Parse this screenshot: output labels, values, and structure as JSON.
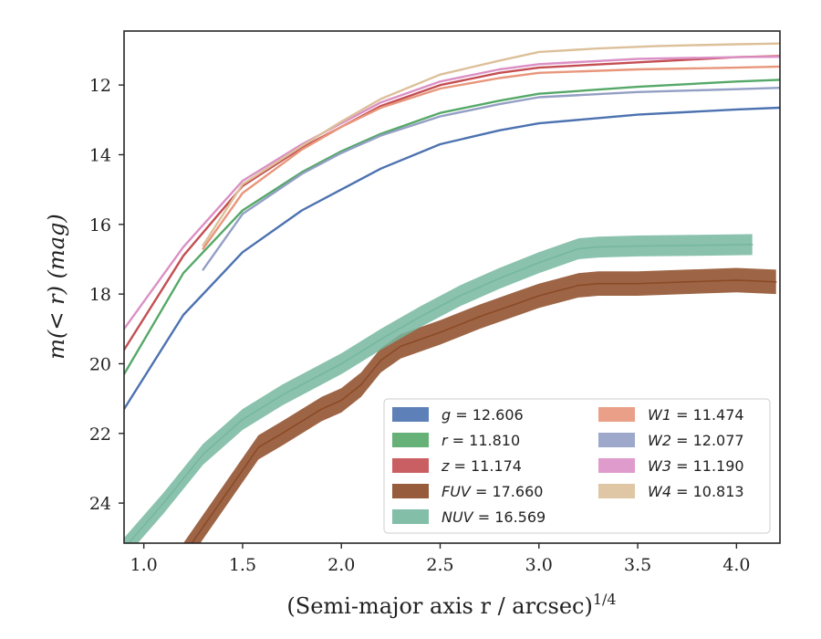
{
  "chart_data": {
    "type": "line",
    "title": "",
    "xlabel": "(Semi-major axis r / arcsec)",
    "xlabel_sup": "1/4",
    "ylabel": "m(< r) (mag)",
    "xlim": [
      0.9,
      4.22
    ],
    "ylim": [
      25.15,
      10.45
    ],
    "y_inverted": true,
    "grid": false,
    "legend_position": "lower-right",
    "xticks": [
      "1.0",
      "1.5",
      "2.0",
      "2.5",
      "3.0",
      "3.5",
      "4.0"
    ],
    "yticks": [
      "12",
      "14",
      "16",
      "18",
      "20",
      "22",
      "24"
    ],
    "legend": [
      {
        "var": "g",
        "value": "12.606"
      },
      {
        "var": "r",
        "value": "11.810"
      },
      {
        "var": "z",
        "value": "11.174"
      },
      {
        "var": "FUV",
        "value": "17.660"
      },
      {
        "var": "NUV",
        "value": "16.569"
      },
      {
        "var": "W1",
        "value": "11.474"
      },
      {
        "var": "W2",
        "value": "12.077"
      },
      {
        "var": "W3",
        "value": "11.190"
      },
      {
        "var": "W4",
        "value": "10.813"
      }
    ],
    "series": [
      {
        "name": "g",
        "color": "#4c72b0",
        "x": [
          0.9,
          1.2,
          1.5,
          1.8,
          2.0,
          2.2,
          2.5,
          2.8,
          3.0,
          3.5,
          4.0,
          4.22
        ],
        "y": [
          21.3,
          18.6,
          16.8,
          15.6,
          15.0,
          14.4,
          13.7,
          13.3,
          13.1,
          12.85,
          12.7,
          12.65
        ]
      },
      {
        "name": "r",
        "color": "#55a868",
        "x": [
          0.9,
          1.2,
          1.5,
          1.8,
          2.0,
          2.2,
          2.5,
          2.8,
          3.0,
          3.5,
          4.0,
          4.22
        ],
        "y": [
          20.3,
          17.4,
          15.6,
          14.5,
          13.9,
          13.4,
          12.8,
          12.45,
          12.25,
          12.05,
          11.9,
          11.85
        ]
      },
      {
        "name": "z",
        "color": "#c44e52",
        "x": [
          0.9,
          1.2,
          1.5,
          1.8,
          2.0,
          2.2,
          2.5,
          2.8,
          3.0,
          3.5,
          4.0,
          4.22
        ],
        "y": [
          19.6,
          16.9,
          14.9,
          13.8,
          13.2,
          12.6,
          12.0,
          11.65,
          11.5,
          11.35,
          11.2,
          11.17
        ]
      },
      {
        "name": "FUV",
        "color": "#8c4a26",
        "x": [
          1.2,
          1.58,
          1.7,
          1.9,
          2.0,
          2.1,
          2.2,
          2.3,
          2.5,
          2.7,
          2.9,
          3.0,
          3.2,
          3.3,
          3.5,
          4.0,
          4.2
        ],
        "y": [
          25.5,
          22.4,
          22.0,
          21.3,
          21.05,
          20.6,
          19.9,
          19.5,
          19.1,
          18.65,
          18.25,
          18.05,
          17.75,
          17.7,
          17.7,
          17.6,
          17.65
        ],
        "band": 0.35
      },
      {
        "name": "NUV",
        "color": "#76b7a0",
        "x": [
          0.9,
          1.1,
          1.3,
          1.5,
          1.7,
          2.0,
          2.2,
          2.4,
          2.6,
          2.8,
          3.0,
          3.2,
          3.3,
          3.5,
          3.8,
          4.08
        ],
        "y": [
          25.3,
          24.0,
          22.6,
          21.6,
          20.9,
          20.0,
          19.3,
          18.65,
          18.05,
          17.55,
          17.1,
          16.7,
          16.65,
          16.62,
          16.6,
          16.58
        ],
        "band": 0.3
      },
      {
        "name": "W1",
        "color": "#e8967b",
        "x": [
          1.3,
          1.5,
          1.8,
          2.0,
          2.2,
          2.5,
          2.8,
          3.0,
          3.5,
          4.0,
          4.22
        ],
        "y": [
          16.7,
          15.1,
          13.85,
          13.2,
          12.65,
          12.1,
          11.8,
          11.65,
          11.55,
          11.5,
          11.47
        ]
      },
      {
        "name": "W2",
        "color": "#939fc4",
        "x": [
          1.3,
          1.5,
          1.8,
          2.0,
          2.2,
          2.5,
          2.8,
          3.0,
          3.5,
          4.0,
          4.22
        ],
        "y": [
          17.3,
          15.7,
          14.55,
          13.95,
          13.45,
          12.9,
          12.55,
          12.35,
          12.2,
          12.12,
          12.08
        ]
      },
      {
        "name": "W3",
        "color": "#db90c5",
        "x": [
          0.9,
          1.2,
          1.5,
          1.8,
          2.0,
          2.2,
          2.5,
          2.8,
          3.0,
          3.5,
          4.0,
          4.22
        ],
        "y": [
          19.0,
          16.65,
          14.75,
          13.7,
          13.1,
          12.5,
          11.9,
          11.55,
          11.4,
          11.25,
          11.2,
          11.19
        ]
      },
      {
        "name": "W4",
        "color": "#dcc09a",
        "x": [
          1.3,
          1.5,
          1.8,
          2.0,
          2.2,
          2.5,
          2.8,
          3.0,
          3.3,
          3.6,
          4.0,
          4.22
        ],
        "y": [
          16.6,
          14.85,
          13.75,
          13.05,
          12.4,
          11.7,
          11.3,
          11.05,
          10.95,
          10.88,
          10.83,
          10.81
        ]
      }
    ]
  }
}
